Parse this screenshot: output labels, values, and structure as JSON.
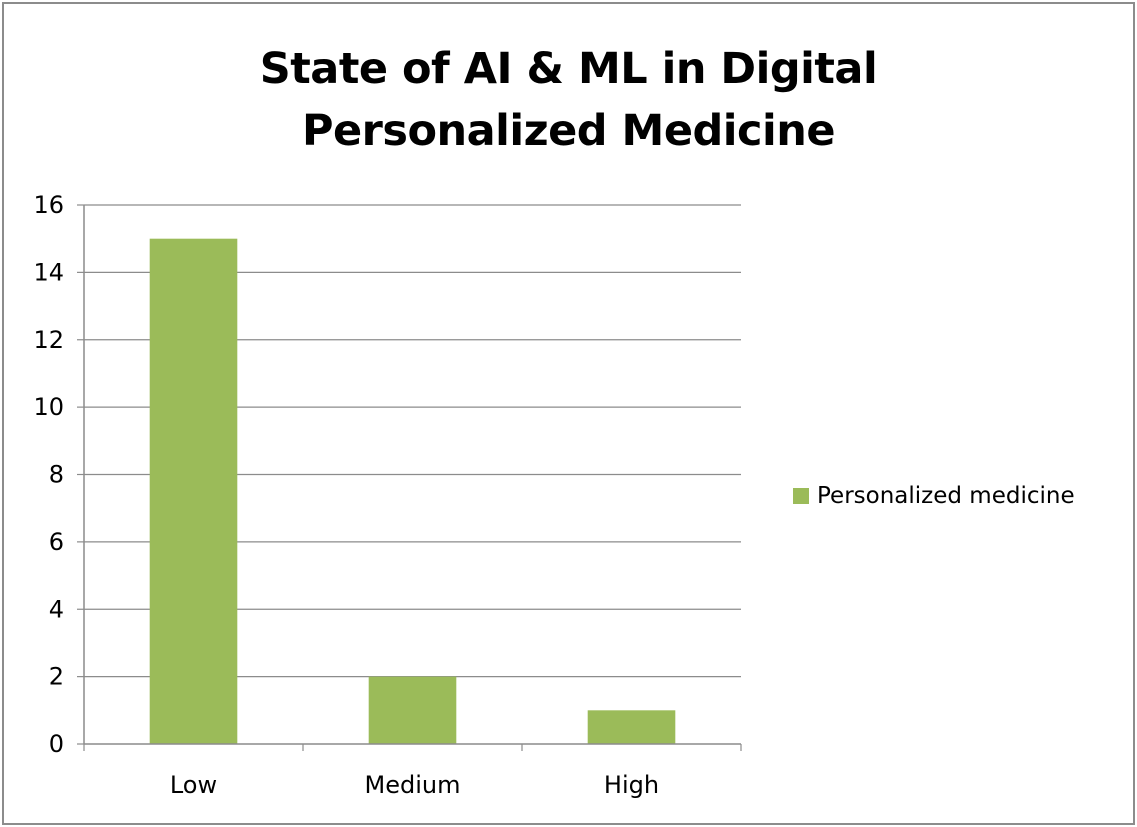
{
  "chart_data": {
    "type": "bar",
    "title_lines": [
      "State of AI & ML in Digital",
      "Personalized Medicine"
    ],
    "categories": [
      "Low",
      "Medium",
      "High"
    ],
    "series": [
      {
        "name": "Personalized medicine",
        "values": [
          15,
          2,
          1
        ],
        "color": "#9bbb59"
      }
    ],
    "xlabel": "",
    "ylabel": "",
    "ylim": [
      0,
      16
    ],
    "yticks": [
      0,
      2,
      4,
      6,
      8,
      10,
      12,
      14,
      16
    ],
    "grid": true,
    "legend_position": "right"
  }
}
